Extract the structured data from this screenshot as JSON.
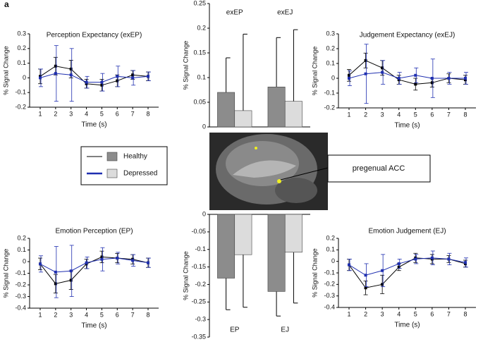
{
  "figure_label": "a",
  "annotation": "pregenual ACC",
  "chart_data": [
    {
      "type": "line",
      "title": "Perception Expectancy (exEP)",
      "x_label": "Time (s)",
      "y_label": "% Signal Change",
      "categories": [
        "1",
        "2",
        "3",
        "4",
        "5",
        "6",
        "7",
        "8"
      ],
      "ylim": [
        -0.2,
        0.3
      ],
      "yticks": [
        -0.2,
        -0.1,
        0,
        0.1,
        0.2,
        0.3
      ],
      "series": [
        {
          "name": "Healthy",
          "color": "#000000",
          "values": [
            0.01,
            0.08,
            0.06,
            -0.04,
            -0.05,
            -0.02,
            0.02,
            0.01
          ],
          "errors": [
            0.05,
            0.06,
            0.06,
            0.03,
            0.04,
            0.04,
            0.03,
            0.03
          ]
        },
        {
          "name": "Depressed",
          "color": "#1f2fb0",
          "values": [
            0.0,
            0.03,
            0.02,
            -0.03,
            -0.03,
            0.01,
            0.0,
            0.01
          ],
          "errors": [
            0.06,
            0.19,
            0.18,
            0.04,
            0.06,
            0.07,
            0.05,
            0.03
          ]
        }
      ]
    },
    {
      "type": "bar",
      "y_label": "% Signal Change",
      "categories": [
        "exEP",
        "exEJ"
      ],
      "ylim": [
        0,
        0.25
      ],
      "yticks": [
        0,
        0.05,
        0.1,
        0.15,
        0.2,
        0.25
      ],
      "series": [
        {
          "name": "Healthy",
          "color": "#8c8c8c",
          "values": [
            0.07,
            0.081
          ],
          "errors": [
            0.07,
            0.1
          ]
        },
        {
          "name": "Depressed",
          "color": "#dcdcdc",
          "values": [
            0.033,
            0.052
          ],
          "errors": [
            0.155,
            0.145
          ]
        }
      ]
    },
    {
      "type": "line",
      "title": "Judgement Expectancy (exEJ)",
      "x_label": "Time (s)",
      "y_label": "% Signal Change",
      "categories": [
        "1",
        "2",
        "3",
        "4",
        "5",
        "6",
        "7",
        "8"
      ],
      "ylim": [
        -0.2,
        0.3
      ],
      "yticks": [
        -0.2,
        -0.1,
        0,
        0.1,
        0.2,
        0.3
      ],
      "series": [
        {
          "name": "Healthy",
          "color": "#000000",
          "values": [
            0.02,
            0.12,
            0.07,
            -0.01,
            -0.04,
            -0.03,
            0.0,
            -0.01
          ],
          "errors": [
            0.04,
            0.05,
            0.05,
            0.03,
            0.04,
            0.03,
            0.03,
            0.03
          ]
        },
        {
          "name": "Depressed",
          "color": "#1f2fb0",
          "values": [
            0.0,
            0.03,
            0.04,
            0.0,
            0.02,
            0.0,
            0.0,
            0.0
          ],
          "errors": [
            0.05,
            0.2,
            0.08,
            0.04,
            0.05,
            0.13,
            0.04,
            0.04
          ]
        }
      ]
    },
    {
      "type": "line",
      "title": "Emotion Perception (EP)",
      "x_label": "Time (s)",
      "y_label": "% Signal Change",
      "categories": [
        "1",
        "2",
        "3",
        "4",
        "5",
        "6",
        "7",
        "8"
      ],
      "ylim": [
        -0.4,
        0.2
      ],
      "yticks": [
        -0.4,
        -0.3,
        -0.2,
        -0.1,
        0,
        0.1,
        0.2
      ],
      "series": [
        {
          "name": "Healthy",
          "color": "#000000",
          "values": [
            -0.02,
            -0.19,
            -0.16,
            -0.02,
            0.04,
            0.03,
            0.02,
            -0.01
          ],
          "errors": [
            0.05,
            0.08,
            0.08,
            0.04,
            0.05,
            0.04,
            0.04,
            0.04
          ]
        },
        {
          "name": "Depressed",
          "color": "#1f2fb0",
          "values": [
            -0.02,
            -0.09,
            -0.08,
            -0.01,
            0.02,
            0.03,
            0.01,
            -0.01
          ],
          "errors": [
            0.07,
            0.22,
            0.22,
            0.05,
            0.1,
            0.05,
            0.05,
            0.04
          ]
        }
      ]
    },
    {
      "type": "bar",
      "y_label": "% Signal Change",
      "categories": [
        "EP",
        "EJ"
      ],
      "ylim": [
        -0.35,
        0
      ],
      "yticks": [
        -0.35,
        -0.3,
        -0.25,
        -0.2,
        -0.15,
        -0.1,
        -0.05,
        0
      ],
      "series": [
        {
          "name": "Healthy",
          "color": "#8c8c8c",
          "values": [
            -0.182,
            -0.22
          ],
          "errors": [
            0.09,
            0.07
          ]
        },
        {
          "name": "Depressed",
          "color": "#dcdcdc",
          "values": [
            -0.115,
            -0.108
          ],
          "errors": [
            0.15,
            0.145
          ]
        }
      ]
    },
    {
      "type": "line",
      "title": "Emotion Judgement (EJ)",
      "x_label": "Time (s)",
      "y_label": "% Signal Change",
      "categories": [
        "1",
        "2",
        "3",
        "4",
        "5",
        "6",
        "7",
        "8"
      ],
      "ylim": [
        -0.4,
        0.2
      ],
      "yticks": [
        -0.4,
        -0.3,
        -0.2,
        -0.1,
        0,
        0.1,
        0.2
      ],
      "series": [
        {
          "name": "Healthy",
          "color": "#000000",
          "values": [
            -0.03,
            -0.23,
            -0.2,
            -0.05,
            0.03,
            0.02,
            0.02,
            -0.02
          ],
          "errors": [
            0.05,
            0.06,
            0.08,
            0.03,
            0.04,
            0.04,
            0.03,
            0.03
          ]
        },
        {
          "name": "Depressed",
          "color": "#1f2fb0",
          "values": [
            -0.03,
            -0.12,
            -0.08,
            -0.02,
            0.02,
            0.03,
            0.02,
            -0.01
          ],
          "errors": [
            0.05,
            0.1,
            0.14,
            0.04,
            0.04,
            0.06,
            0.05,
            0.04
          ]
        }
      ]
    }
  ]
}
